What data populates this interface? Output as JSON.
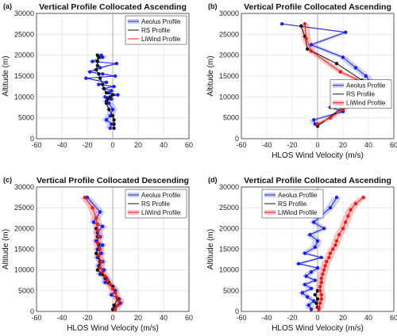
{
  "colors": {
    "aeolus": "#1f1fe0",
    "rs": "#111111",
    "liwind": "#e01f1f",
    "aeolus_band": "#9aa2ec",
    "liwind_band": "#f08a8a",
    "grid": "#e3e3e3",
    "axis": "#333333"
  },
  "chart_data": [
    {
      "id": "a",
      "panel_label": "(a)",
      "type": "line",
      "title": "Vertical Profile Collocated Ascending",
      "xlabel": "",
      "ylabel": "Altitude (m)",
      "xlim": [
        -60,
        60
      ],
      "ylim": [
        0,
        30000
      ],
      "xticks": [
        "-60",
        "-40",
        "-20",
        "0",
        "20",
        "40",
        "60"
      ],
      "yticks": [
        "0",
        "5000",
        "10000",
        "15000",
        "20000",
        "25000",
        "30000"
      ],
      "legend": [
        "Aeolus Profile",
        "RS Profile",
        "LiWind Profile"
      ],
      "legend_position": "top-right",
      "series": [
        {
          "name": "Aeolus Profile",
          "role": "aeolus",
          "markers": true,
          "band": [
            0.5
          ],
          "points": [
            [
              -2,
              2500
            ],
            [
              -1,
              3500
            ],
            [
              -5,
              4500
            ],
            [
              -2,
              5500
            ],
            [
              0,
              7000
            ],
            [
              -3,
              8500
            ],
            [
              -5,
              9000
            ],
            [
              -1,
              9500
            ],
            [
              -6,
              10000
            ],
            [
              4,
              10500
            ],
            [
              -3,
              11000
            ],
            [
              -1,
              11500
            ],
            [
              -7,
              12000
            ],
            [
              1,
              12500
            ],
            [
              -11,
              13000
            ],
            [
              -5,
              13500
            ],
            [
              -21,
              14500
            ],
            [
              2,
              15000
            ],
            [
              -8,
              15500
            ],
            [
              -18,
              16000
            ],
            [
              -10,
              17000
            ],
            [
              3,
              18000
            ],
            [
              -16,
              18500
            ],
            [
              -8,
              19500
            ],
            [
              -9,
              20000
            ]
          ]
        },
        {
          "name": "RS Profile",
          "role": "rs",
          "markers": true,
          "points": [
            [
              1,
              2500
            ],
            [
              1,
              3500
            ],
            [
              1,
              4500
            ],
            [
              0,
              5500
            ],
            [
              -3,
              7000
            ],
            [
              -5,
              8500
            ],
            [
              -4,
              9500
            ],
            [
              -2,
              10000
            ],
            [
              0,
              10500
            ],
            [
              -5,
              11000
            ],
            [
              -7,
              12000
            ],
            [
              -8,
              13000
            ],
            [
              -10,
              14500
            ],
            [
              -11,
              15500
            ],
            [
              -13,
              16500
            ],
            [
              -12,
              17500
            ],
            [
              -12,
              18500
            ],
            [
              -11,
              19500
            ],
            [
              -12,
              20000
            ]
          ]
        },
        {
          "name": "LiWind Profile",
          "role": "liwind",
          "markers": false,
          "points": []
        }
      ]
    },
    {
      "id": "b",
      "panel_label": "(b)",
      "type": "line",
      "title": "Vertical Profile Collocated Ascending",
      "xlabel": "HLOS Wind Velocity (m/s)",
      "ylabel": "Altitude (m)",
      "xlim": [
        -60,
        60
      ],
      "ylim": [
        0,
        30000
      ],
      "xticks": [
        "-60",
        "-40",
        "-20",
        "0",
        "20",
        "40",
        "60"
      ],
      "yticks": [
        "0",
        "5000",
        "10000",
        "15000",
        "20000",
        "25000",
        "30000"
      ],
      "legend": [
        "Aeolus Profile",
        "RS Profile",
        "LiWind Profile"
      ],
      "legend_position": "right",
      "series": [
        {
          "name": "Aeolus Profile",
          "role": "aeolus",
          "markers": true,
          "band": [
            0.5
          ],
          "points": [
            [
              -28,
              27500
            ],
            [
              22,
              25500
            ],
            [
              -5,
              22500
            ],
            [
              20,
              19500
            ],
            [
              30,
              17000
            ],
            [
              38,
              15000
            ],
            [
              43,
              13000
            ],
            [
              28,
              11500
            ],
            [
              35,
              10000
            ],
            [
              10,
              7500
            ],
            [
              20,
              6500
            ],
            [
              -3,
              4500
            ],
            [
              -2,
              3500
            ]
          ]
        },
        {
          "name": "RS Profile",
          "role": "rs",
          "markers": true,
          "points": [
            [
              -13,
              27000
            ],
            [
              -10,
              24500
            ],
            [
              -8,
              21500
            ],
            [
              15,
              18000
            ],
            [
              35,
              14000
            ],
            [
              33,
              12000
            ],
            [
              36,
              10000
            ],
            [
              22,
              8000
            ],
            [
              0,
              3000
            ]
          ]
        },
        {
          "name": "LiWind Profile",
          "role": "liwind",
          "markers": true,
          "band": [
            0.5
          ],
          "points": [
            [
              -10,
              27500
            ],
            [
              -9,
              24000
            ],
            [
              -5,
              21000
            ],
            [
              18,
              16000
            ],
            [
              36,
              13500
            ],
            [
              40,
              11000
            ],
            [
              30,
              9000
            ],
            [
              20,
              7000
            ],
            [
              10,
              5000
            ],
            [
              0,
              3500
            ]
          ]
        }
      ]
    },
    {
      "id": "c",
      "panel_label": "(c)",
      "type": "line",
      "title": "Vertical Profile Collocated Descending",
      "xlabel": "HLOS Wind Velocity (m/s)",
      "ylabel": "Altitude (m)",
      "xlim": [
        -60,
        60
      ],
      "ylim": [
        0,
        30000
      ],
      "xticks": [
        "-60",
        "-40",
        "-20",
        "0",
        "20",
        "40",
        "60"
      ],
      "yticks": [
        "0",
        "5000",
        "10000",
        "15000",
        "20000",
        "25000",
        "30000"
      ],
      "legend": [
        "Aeolus Profile",
        "RS Profile",
        "LiWind Profile"
      ],
      "legend_position": "top-right",
      "series": [
        {
          "name": "Aeolus Profile",
          "role": "aeolus",
          "markers": true,
          "band": [
            0.5
          ],
          "points": [
            [
              -20,
              27500
            ],
            [
              -10,
              24000
            ],
            [
              -15,
              21500
            ],
            [
              -8,
              20500
            ],
            [
              -12,
              19000
            ],
            [
              -10,
              18000
            ],
            [
              -13,
              17000
            ],
            [
              -8,
              16000
            ],
            [
              -12,
              15000
            ],
            [
              -9,
              14000
            ],
            [
              -12,
              13000
            ],
            [
              -8,
              12000
            ],
            [
              -11,
              11000
            ],
            [
              -7,
              10000
            ],
            [
              -10,
              9000
            ],
            [
              -5,
              8000
            ],
            [
              -6,
              7000
            ],
            [
              0,
              6000
            ],
            [
              2,
              5000
            ],
            [
              -1,
              4000
            ],
            [
              5,
              3000
            ],
            [
              6,
              2000
            ],
            [
              2,
              1000
            ]
          ]
        },
        {
          "name": "RS Profile",
          "role": "rs",
          "markers": true,
          "points": [
            [
              -13,
              20000
            ],
            [
              -12,
              18000
            ],
            [
              -11,
              16000
            ],
            [
              -13,
              14000
            ],
            [
              -10,
              12000
            ],
            [
              -12,
              10000
            ],
            [
              -8,
              9000
            ],
            [
              -6,
              8000
            ],
            [
              -3,
              7000
            ],
            [
              0,
              6000
            ],
            [
              2,
              4500
            ],
            [
              4,
              3000
            ],
            [
              1,
              1500
            ],
            [
              0,
              500
            ]
          ]
        },
        {
          "name": "LiWind Profile",
          "role": "liwind",
          "markers": true,
          "band": [
            0.5
          ],
          "points": [
            [
              -22,
              27500
            ],
            [
              -16,
              25000
            ],
            [
              -13,
              22500
            ],
            [
              -12,
              21000
            ],
            [
              -12,
              19500
            ],
            [
              -11,
              18000
            ],
            [
              -12,
              16500
            ],
            [
              -10,
              15000
            ],
            [
              -11,
              13500
            ],
            [
              -9,
              12000
            ],
            [
              -10,
              10500
            ],
            [
              -8,
              9500
            ],
            [
              -6,
              8500
            ],
            [
              -4,
              7500
            ],
            [
              -2,
              6500
            ],
            [
              0,
              5500
            ],
            [
              2,
              4500
            ],
            [
              3,
              3500
            ],
            [
              5,
              2500
            ],
            [
              4,
              1500
            ],
            [
              2,
              500
            ]
          ]
        }
      ]
    },
    {
      "id": "d",
      "panel_label": "(d)",
      "type": "line",
      "title": "Vertical Profile Collocated Ascending",
      "xlabel": "HLOS Wind Velocity (m/s)",
      "ylabel": "Altitude (m)",
      "xlim": [
        -60,
        60
      ],
      "ylim": [
        0,
        30000
      ],
      "xticks": [
        "-60",
        "-40",
        "-20",
        "0",
        "20",
        "40",
        "60"
      ],
      "yticks": [
        "0",
        "5000",
        "10000",
        "15000",
        "20000",
        "25000",
        "30000"
      ],
      "legend": [
        "Aeolus Profile",
        "RS Profile",
        "LiWind Profile"
      ],
      "legend_position": "top-left",
      "series": [
        {
          "name": "Aeolus Profile",
          "role": "aeolus",
          "markers": true,
          "band": [
            0.5
          ],
          "points": [
            [
              15,
              27500
            ],
            [
              10,
              25000
            ],
            [
              -3,
              21500
            ],
            [
              5,
              20000
            ],
            [
              -6,
              18500
            ],
            [
              0,
              17000
            ],
            [
              -2,
              15500
            ],
            [
              -10,
              14000
            ],
            [
              3,
              13000
            ],
            [
              -15,
              11500
            ],
            [
              0,
              10500
            ],
            [
              -5,
              9500
            ],
            [
              -9,
              8500
            ],
            [
              -2,
              7500
            ],
            [
              -10,
              6500
            ],
            [
              -5,
              5500
            ],
            [
              -12,
              4500
            ],
            [
              -8,
              3500
            ],
            [
              -3,
              2500
            ],
            [
              -7,
              1500
            ],
            [
              -5,
              500
            ]
          ]
        },
        {
          "name": "RS Profile",
          "role": "rs",
          "markers": true,
          "points": [
            [
              0,
              5000
            ],
            [
              -2,
              4000
            ],
            [
              0,
              3000
            ],
            [
              -1,
              2000
            ],
            [
              0,
              1000
            ]
          ]
        },
        {
          "name": "LiWind Profile",
          "role": "liwind",
          "markers": true,
          "band": [
            0.5
          ],
          "points": [
            [
              36,
              27500
            ],
            [
              30,
              26000
            ],
            [
              26,
              24500
            ],
            [
              24,
              23000
            ],
            [
              22,
              21500
            ],
            [
              20,
              20000
            ],
            [
              17,
              18500
            ],
            [
              15,
              17000
            ],
            [
              14,
              16000
            ],
            [
              12,
              15000
            ],
            [
              10,
              14000
            ],
            [
              9,
              13000
            ],
            [
              7,
              12000
            ],
            [
              6,
              11000
            ],
            [
              5,
              10000
            ],
            [
              4,
              9000
            ],
            [
              3,
              8000
            ],
            [
              3,
              7000
            ],
            [
              2,
              6000
            ],
            [
              2,
              5000
            ],
            [
              3,
              4000
            ],
            [
              3,
              3000
            ],
            [
              2,
              2000
            ],
            [
              1,
              1000
            ],
            [
              1,
              500
            ]
          ]
        }
      ]
    }
  ]
}
